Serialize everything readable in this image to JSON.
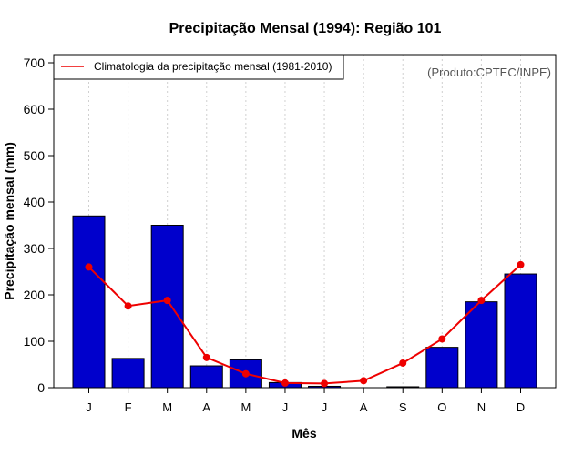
{
  "colors": {
    "bar": "#0000cc",
    "line": "#ee0000",
    "grid": "#d0d0d0"
  },
  "chart_data": {
    "type": "bar",
    "title": "Precipitação Mensal (1994): Região 101",
    "xlabel": "Mês",
    "ylabel": "Precipitação mensal (mm)",
    "ylim": [
      0,
      700
    ],
    "yticks": [
      0,
      100,
      200,
      300,
      400,
      500,
      600,
      700
    ],
    "categories": [
      "J",
      "F",
      "M",
      "A",
      "M",
      "J",
      "J",
      "A",
      "S",
      "O",
      "N",
      "D"
    ],
    "series": [
      {
        "name": "Precipitação mensal (1994)",
        "kind": "bar",
        "values": [
          370,
          63,
          350,
          47,
          60,
          11,
          3,
          0,
          2,
          87,
          185,
          245
        ]
      },
      {
        "name": "Climatologia da precipitação mensal (1981-2010)",
        "kind": "line",
        "values": [
          260,
          176,
          188,
          65,
          30,
          10,
          9,
          15,
          53,
          105,
          188,
          265
        ]
      }
    ],
    "legend": {
      "label": "Climatologia da precipitação mensal (1981-2010)",
      "position": "top-left"
    },
    "annotation": "(Produto:CPTEC/INPE)",
    "grid": true
  }
}
